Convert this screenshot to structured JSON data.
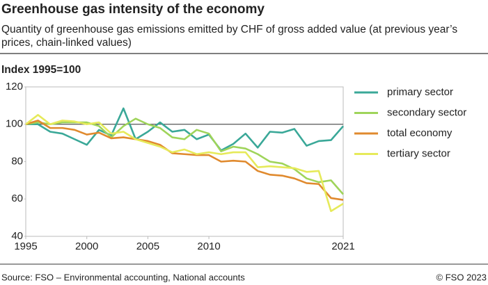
{
  "chart_data": {
    "type": "line",
    "title": "Greenhouse gas intensity of the economy",
    "subtitle": [
      "Quantity of greenhouse gas emissions emitted by CHF of gross added value (at previous year’s",
      "prices, chain-linked values)"
    ],
    "y_axis_label": "Index 1995=100",
    "x": [
      1995,
      1996,
      1997,
      1998,
      1999,
      2000,
      2001,
      2002,
      2003,
      2004,
      2005,
      2006,
      2007,
      2008,
      2009,
      2010,
      2011,
      2012,
      2013,
      2014,
      2015,
      2016,
      2017,
      2018,
      2019,
      2020,
      2021
    ],
    "series": [
      {
        "name": "primary sector",
        "color": "#3aa898",
        "values": [
          100,
          100,
          96,
          95,
          92,
          89,
          97,
          94,
          108.5,
          92,
          96,
          101,
          96,
          97,
          92,
          94.5,
          86,
          89.5,
          95,
          87.5,
          96,
          95.5,
          97.5,
          88.5,
          91,
          91.5,
          99
        ]
      },
      {
        "name": "secondary sector",
        "color": "#9fd45a",
        "values": [
          100,
          101,
          100,
          101,
          101,
          101,
          99,
          93,
          99,
          103,
          100,
          98,
          93,
          92,
          97,
          95,
          85.5,
          88,
          87,
          84,
          80,
          79,
          76,
          71,
          69,
          70,
          62.5
        ]
      },
      {
        "name": "total economy",
        "color": "#e08a2e",
        "values": [
          100,
          102,
          98,
          98,
          97,
          94.5,
          95.5,
          92.5,
          93,
          92,
          91,
          89,
          84.5,
          84,
          83.5,
          83.5,
          80,
          80.5,
          80,
          75,
          73,
          72.5,
          71,
          68.5,
          68,
          60.5,
          59.5
        ]
      },
      {
        "name": "tertiary sector",
        "color": "#e6ea5a",
        "values": [
          100,
          105,
          100,
          102,
          101.5,
          100,
          101,
          95,
          96,
          92,
          90,
          88,
          85,
          86.5,
          84,
          85,
          84,
          85,
          85,
          77,
          77.5,
          77,
          76.5,
          74.5,
          75,
          53.5,
          57.5
        ]
      }
    ],
    "xlim": [
      1995,
      2021
    ],
    "xticks": [
      1995,
      2000,
      2005,
      2010,
      2021
    ],
    "ylim": [
      40,
      120
    ],
    "yticks": [
      40,
      60,
      80,
      100,
      120
    ],
    "reference_line": 100,
    "source": "Source: FSO – Environmental accounting, National accounts",
    "copyright": "© FSO 2023"
  }
}
